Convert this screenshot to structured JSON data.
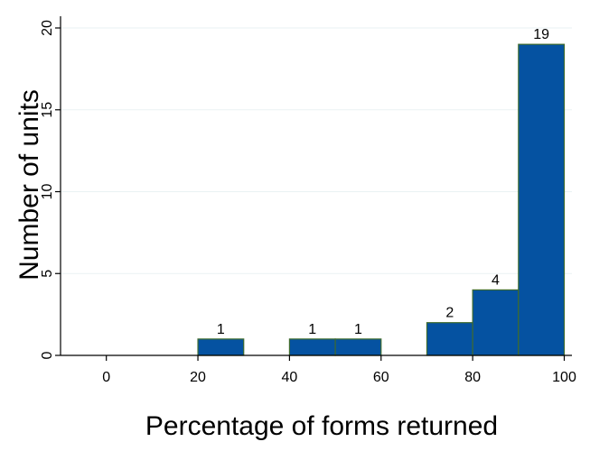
{
  "chart_data": {
    "type": "bar",
    "histogram": true,
    "bins": [
      {
        "start": 20,
        "end": 30,
        "value": 1
      },
      {
        "start": 40,
        "end": 50,
        "value": 1
      },
      {
        "start": 50,
        "end": 60,
        "value": 1
      },
      {
        "start": 70,
        "end": 80,
        "value": 2
      },
      {
        "start": 80,
        "end": 90,
        "value": 4
      },
      {
        "start": 90,
        "end": 100,
        "value": 19
      }
    ],
    "xlabel": "Percentage of forms returned",
    "ylabel": "Number of units",
    "xlim": [
      -10,
      100
    ],
    "ylim": [
      0,
      20
    ],
    "xticks": [
      0,
      20,
      40,
      60,
      80,
      100
    ],
    "yticks": [
      0,
      5,
      10,
      15,
      20
    ],
    "data_labels": [
      "1",
      "1",
      "1",
      "2",
      "4",
      "19"
    ],
    "grid": "horizontal",
    "legend": "none"
  },
  "colors": {
    "bar_fill": "#0552a1",
    "bar_stroke": "#3f6b2e",
    "axis": "#000000",
    "grid": "#eaf2f3",
    "background": "#ffffff"
  }
}
